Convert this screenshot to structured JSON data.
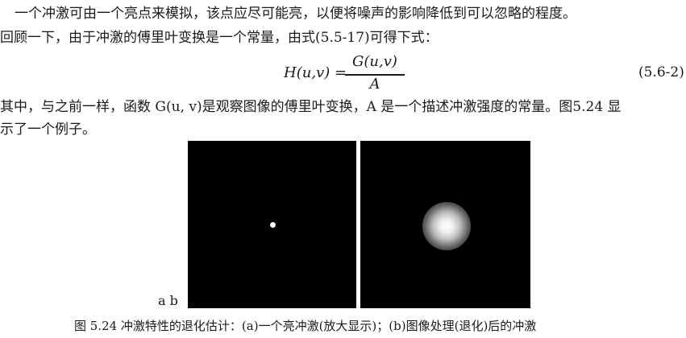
{
  "paragraph1": {
    "line1": "一个冲激可由一个亮点来模拟，该点应尽可能亮，以便将噪声的影响降低到可以忽略的程度。",
    "line2": "回顾一下，由于冲激的傅里叶变换是一个常量，由式(5.5-17)可得下式："
  },
  "equation": {
    "lhs": "H(u,v) =",
    "numerator": "G(u,v)",
    "denominator": "A",
    "number": "(5.6-2)"
  },
  "paragraph2": {
    "line1": "其中，与之前一样，函数 G(u, v)是观察图像的傅里叶变换，A 是一个描述冲激强度的常量。图5.24 显",
    "line2": "示了一个例子。"
  },
  "figure": {
    "labels": "a b",
    "caption": "图 5.24   冲激特性的退化估计：(a)一个亮冲激(放大显示)；(b)图像处理(退化)后的冲激"
  }
}
